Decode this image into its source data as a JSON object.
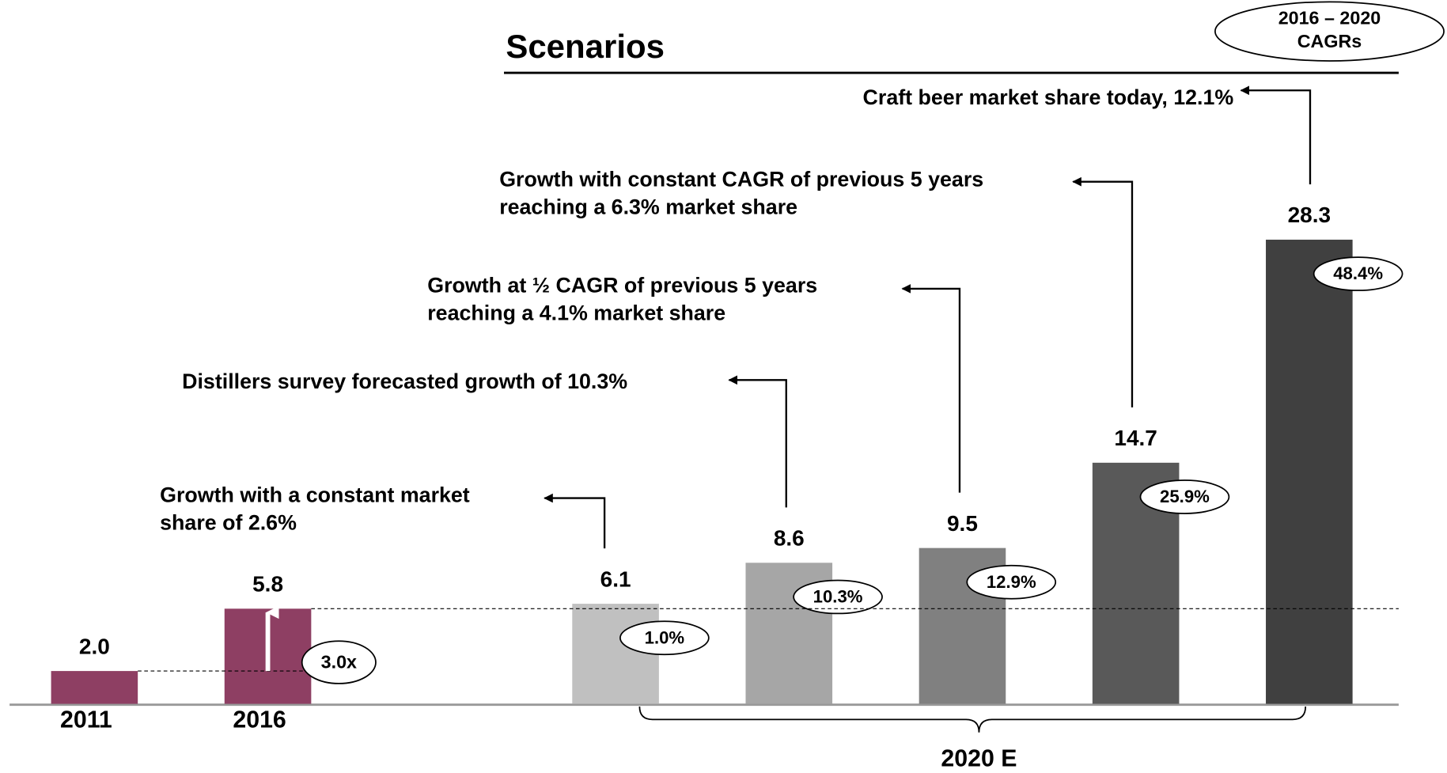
{
  "chart_data": {
    "type": "bar",
    "title": "Scenarios",
    "legend_note": [
      "2016 – 2020",
      "CAGRs"
    ],
    "categories": [
      "2011",
      "2016",
      null,
      null,
      null,
      null,
      null
    ],
    "group_label": "2020 E",
    "values": [
      2.0,
      5.8,
      6.1,
      8.6,
      9.5,
      14.7,
      28.3
    ],
    "value_labels": [
      "2.0",
      "5.8",
      "6.1",
      "8.6",
      "9.5",
      "14.7",
      "28.3"
    ],
    "colors": [
      "#8e3f63",
      "#8e3f63",
      "#c0c0c0",
      "#a6a6a6",
      "#808080",
      "#595959",
      "#404040"
    ],
    "cagr_labels": [
      null,
      null,
      "1.0%",
      "10.3%",
      "12.9%",
      "25.9%",
      "48.4%"
    ],
    "multiple_label": "3.0x",
    "annotations": [
      null,
      null,
      [
        "Growth with a constant market",
        "share of 2.6%"
      ],
      [
        "Distillers survey forecasted growth of 10.3%"
      ],
      [
        "Growth at ½ CAGR of previous 5 years",
        "reaching a 4.1% market share"
      ],
      [
        "Growth with constant CAGR of previous 5 years",
        "reaching a 6.3% market share"
      ],
      [
        "Craft beer market share today, 12.1%"
      ]
    ]
  }
}
